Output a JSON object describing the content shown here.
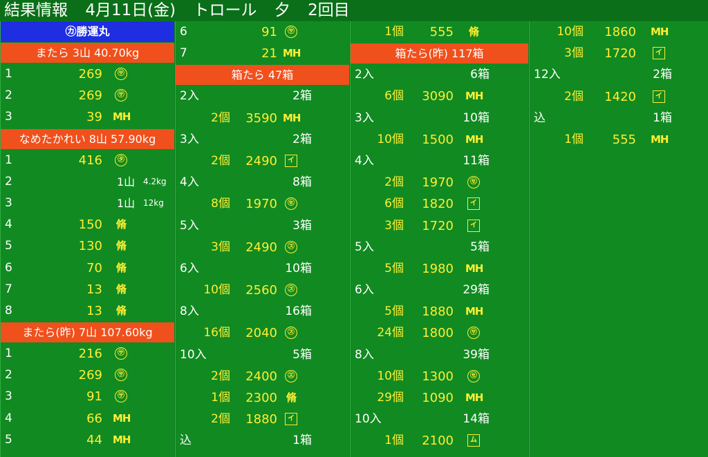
{
  "header": {
    "title": "結果情報",
    "date": "4月11日(金)",
    "method": "トロール",
    "session": "夕",
    "round": "2回目"
  },
  "col1": {
    "boat": "㋕勝運丸",
    "sections": [
      {
        "title": "またら 3山 40.70kg",
        "rows": [
          {
            "no": "1",
            "price": "269",
            "mark": "㋚"
          },
          {
            "no": "2",
            "price": "269",
            "mark": "㋚"
          },
          {
            "no": "3",
            "price": "39",
            "mark": "MH"
          }
        ]
      },
      {
        "title": "なめたかれい 8山 57.90kg",
        "rows": [
          {
            "no": "1",
            "price": "416",
            "mark": "㋟"
          },
          {
            "no": "2",
            "mountain": "1山",
            "weight": "4.2kg"
          },
          {
            "no": "3",
            "mountain": "1山",
            "weight": "12kg"
          },
          {
            "no": "4",
            "price": "150",
            "mark": "脩"
          },
          {
            "no": "5",
            "price": "130",
            "mark": "脩"
          },
          {
            "no": "6",
            "price": "70",
            "mark": "脩"
          },
          {
            "no": "7",
            "price": "13",
            "mark": "脩"
          },
          {
            "no": "8",
            "price": "13",
            "mark": "脩"
          }
        ]
      },
      {
        "title": "またら(昨) 7山 107.60kg",
        "rows": [
          {
            "no": "1",
            "price": "216",
            "mark": "㋚"
          },
          {
            "no": "2",
            "price": "269",
            "mark": "㋚"
          },
          {
            "no": "3",
            "price": "91",
            "mark": "㋚"
          },
          {
            "no": "4",
            "price": "66",
            "mark": "MH"
          },
          {
            "no": "5",
            "price": "44",
            "mark": "MH"
          }
        ]
      }
    ]
  },
  "col2": {
    "top_rows": [
      {
        "no": "6",
        "price": "91",
        "mark": "㋚"
      },
      {
        "no": "7",
        "price": "21",
        "mark": "MH"
      }
    ],
    "section_title": "箱たら 47箱",
    "rows": [
      {
        "type": "head",
        "label": "2入",
        "boxes": "2箱"
      },
      {
        "type": "item",
        "pieces": "2個",
        "price": "3590",
        "mark": "MH"
      },
      {
        "type": "head",
        "label": "3入",
        "boxes": "2箱"
      },
      {
        "type": "item",
        "pieces": "2個",
        "price": "2490",
        "mark": "イ"
      },
      {
        "type": "head",
        "label": "4入",
        "boxes": "8箱"
      },
      {
        "type": "item",
        "pieces": "8個",
        "price": "1970",
        "mark": "㋝"
      },
      {
        "type": "head",
        "label": "5入",
        "boxes": "3箱"
      },
      {
        "type": "item",
        "pieces": "3個",
        "price": "2490",
        "mark": "㋜"
      },
      {
        "type": "head",
        "label": "6入",
        "boxes": "10箱"
      },
      {
        "type": "item",
        "pieces": "10個",
        "price": "2560",
        "mark": "㋜"
      },
      {
        "type": "head",
        "label": "8入",
        "boxes": "16箱"
      },
      {
        "type": "item",
        "pieces": "16個",
        "price": "2040",
        "mark": "㋜"
      },
      {
        "type": "head",
        "label": "10入",
        "boxes": "5箱"
      },
      {
        "type": "item",
        "pieces": "2個",
        "price": "2400",
        "mark": "㋓"
      },
      {
        "type": "item",
        "pieces": "1個",
        "price": "2300",
        "mark": "脩"
      },
      {
        "type": "item",
        "pieces": "2個",
        "price": "1880",
        "mark": "イ"
      },
      {
        "type": "head",
        "label": "込",
        "boxes": "1箱"
      }
    ]
  },
  "col3": {
    "top_rows": [
      {
        "type": "item",
        "pieces": "1個",
        "price": "555",
        "mark": "脩"
      }
    ],
    "section_title": "箱たら(昨) 117箱",
    "rows": [
      {
        "type": "head",
        "label": "2入",
        "boxes": "6箱"
      },
      {
        "type": "item",
        "pieces": "6個",
        "price": "3090",
        "mark": "MH"
      },
      {
        "type": "head",
        "label": "3入",
        "boxes": "10箱"
      },
      {
        "type": "item",
        "pieces": "10個",
        "price": "1500",
        "mark": "MH"
      },
      {
        "type": "head",
        "label": "4入",
        "boxes": "11箱"
      },
      {
        "type": "item",
        "pieces": "2個",
        "price": "1970",
        "mark": "㋝"
      },
      {
        "type": "item",
        "pieces": "6個",
        "price": "1820",
        "mark": "イ"
      },
      {
        "type": "item",
        "pieces": "3個",
        "price": "1720",
        "mark": "イ"
      },
      {
        "type": "head",
        "label": "5入",
        "boxes": "5箱"
      },
      {
        "type": "item",
        "pieces": "5個",
        "price": "1980",
        "mark": "MH"
      },
      {
        "type": "head",
        "label": "6入",
        "boxes": "29箱"
      },
      {
        "type": "item",
        "pieces": "5個",
        "price": "1880",
        "mark": "MH"
      },
      {
        "type": "item",
        "pieces": "24個",
        "price": "1800",
        "mark": "㋚"
      },
      {
        "type": "head",
        "label": "8入",
        "boxes": "39箱"
      },
      {
        "type": "item",
        "pieces": "10個",
        "price": "1300",
        "mark": "㋝"
      },
      {
        "type": "item",
        "pieces": "29個",
        "price": "1090",
        "mark": "MH"
      },
      {
        "type": "head",
        "label": "10入",
        "boxes": "14箱"
      },
      {
        "type": "item",
        "pieces": "1個",
        "price": "2100",
        "mark": "ム"
      }
    ]
  },
  "col4": {
    "rows": [
      {
        "type": "item",
        "pieces": "10個",
        "price": "1860",
        "mark": "MH"
      },
      {
        "type": "item",
        "pieces": "3個",
        "price": "1720",
        "mark": "イ"
      },
      {
        "type": "head",
        "label": "12入",
        "boxes": "2箱"
      },
      {
        "type": "item",
        "pieces": "2個",
        "price": "1420",
        "mark": "イ"
      },
      {
        "type": "head",
        "label": "込",
        "boxes": "1箱"
      },
      {
        "type": "item",
        "pieces": "1個",
        "price": "555",
        "mark": "MH"
      }
    ]
  },
  "colors": {
    "background": "#118a22",
    "header_blue": "#1e2ee0",
    "header_red": "#f0501c",
    "value_yellow": "#ffee33",
    "label_white": "#ffffff"
  }
}
